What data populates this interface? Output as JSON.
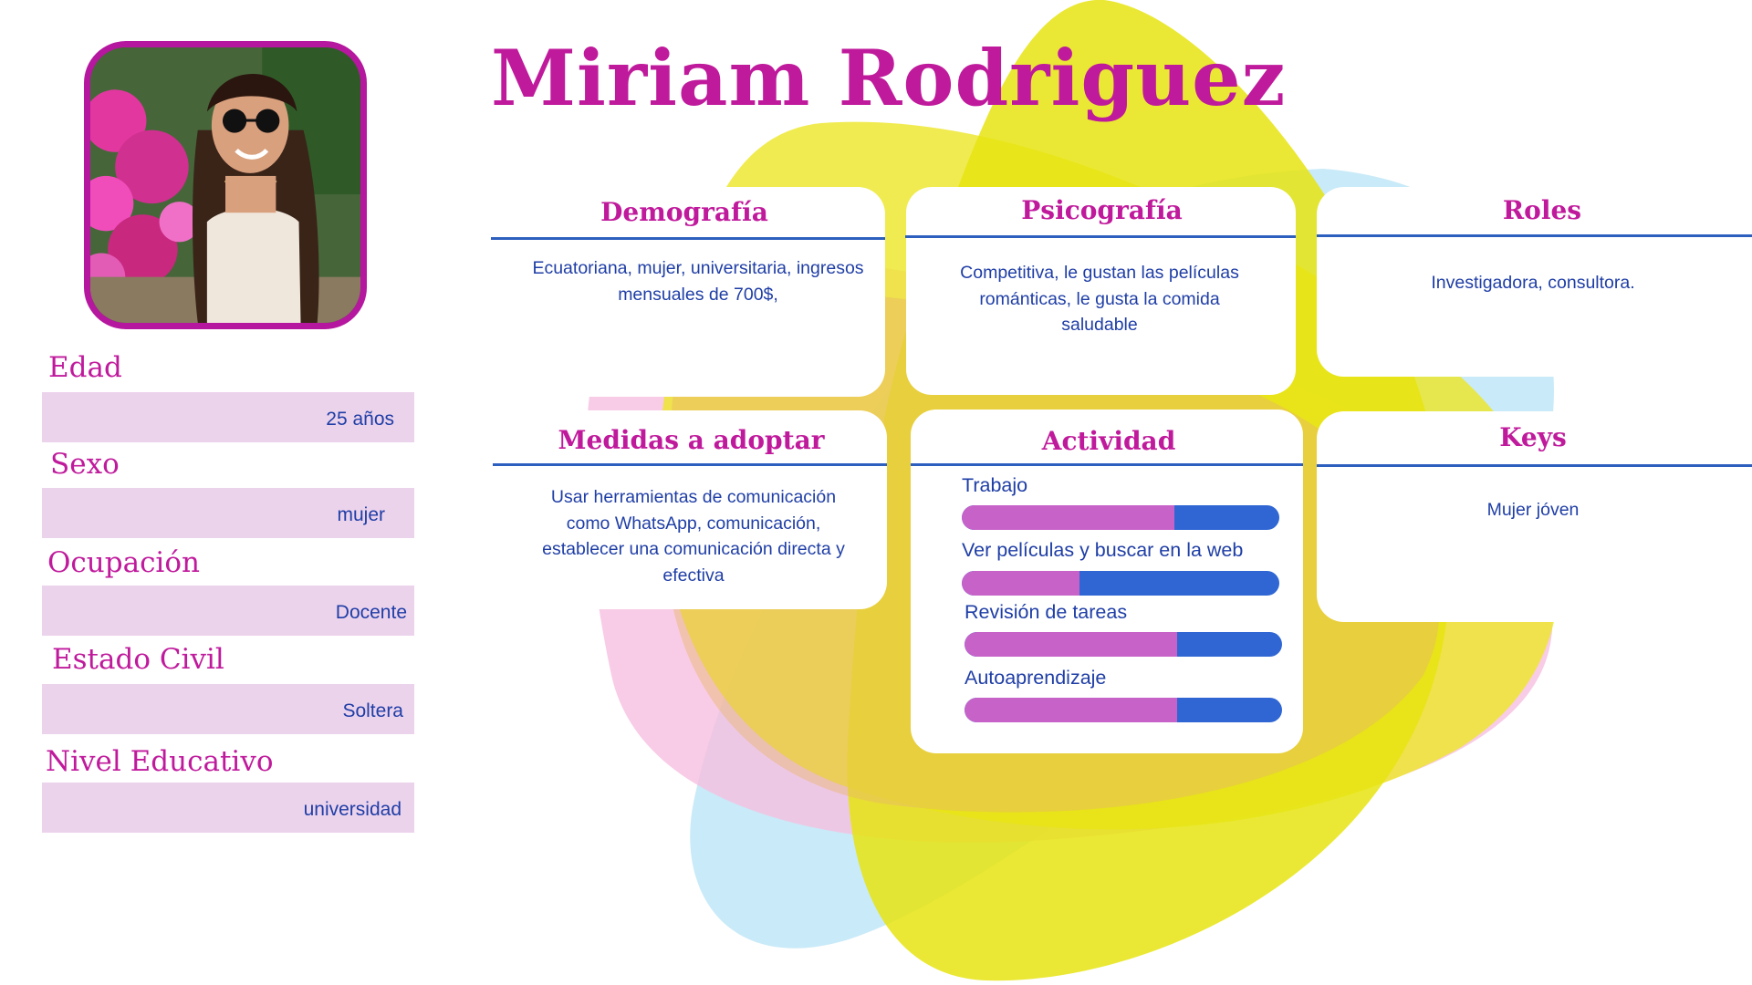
{
  "name": "Miriam Rodriguez",
  "icons": {
    "avatar": "person-photo"
  },
  "colors": {
    "accent": "#c01a9c",
    "text": "#1f3ea6",
    "field_bg": "#ecd3ec",
    "bar_track": "#2f66d3",
    "bar_fill": "#c763c8"
  },
  "profile": {
    "fields": [
      {
        "label": "Edad",
        "value": "25 años"
      },
      {
        "label": "Sexo",
        "value": "mujer"
      },
      {
        "label": "Ocupación",
        "value": "Docente"
      },
      {
        "label": "Estado Civil",
        "value": "Soltera"
      },
      {
        "label": "Nivel Educativo",
        "value": "universidad"
      }
    ]
  },
  "sections": {
    "demografia": {
      "title": "Demografía",
      "text": "Ecuatoriana, mujer, universitaria, ingresos mensuales de 700$,"
    },
    "psicografia": {
      "title": "Psicografía",
      "text": "Competitiva, le gustan las películas románticas, le gusta la comida saludable"
    },
    "roles": {
      "title": "Roles",
      "text": "Investigadora, consultora."
    },
    "medidas": {
      "title": "Medidas a adoptar",
      "text": "Usar herramientas de comunicación como WhatsApp, comunicación, establecer una comunicación directa y efectiva"
    },
    "actividad": {
      "title": "Actividad",
      "items": [
        {
          "label": "Trabajo",
          "level": 0.67
        },
        {
          "label": "Ver películas y buscar en la web",
          "level": 0.37
        },
        {
          "label": "Revisión de tareas",
          "level": 0.67
        },
        {
          "label": "Autoaprendizaje",
          "level": 0.67
        }
      ]
    },
    "keys": {
      "title": "Keys",
      "text": "Mujer jóven"
    }
  }
}
